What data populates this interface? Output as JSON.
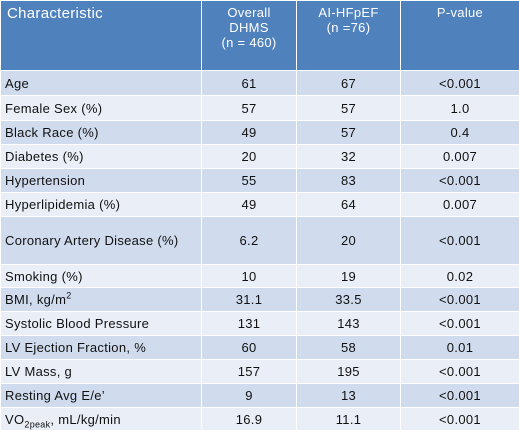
{
  "table": {
    "header": [
      "Characteristic",
      [
        "Overall",
        "DHMS",
        "(n = 460)"
      ],
      [
        "AI-HFpEF",
        "(n =76)"
      ],
      "P-value"
    ],
    "rows": [
      [
        "Age",
        "61",
        "67",
        "<0.001"
      ],
      [
        "Female Sex (%)",
        "57",
        "57",
        "1.0"
      ],
      [
        "Black Race (%)",
        "49",
        "57",
        "0.4"
      ],
      [
        "Diabetes (%)",
        "20",
        "32",
        "0.007"
      ],
      [
        "Hypertension",
        "55",
        "83",
        "<0.001"
      ],
      [
        "Hyperlipidemia (%)",
        "49",
        "64",
        "0.007"
      ],
      [
        "Coronary Artery Disease (%)",
        "6.2",
        "20",
        "<0.001"
      ],
      [
        "Smoking (%)",
        "10",
        "19",
        "0.02"
      ],
      [
        [
          {
            "text": "BMI, kg/m"
          },
          {
            "text": "2",
            "style": "sup"
          }
        ],
        "31.1",
        "33.5",
        "<0.001"
      ],
      [
        "Systolic Blood Pressure",
        "131",
        "143",
        "<0.001"
      ],
      [
        "LV Ejection Fraction, %",
        "60",
        "58",
        "0.01"
      ],
      [
        "LV Mass, g",
        "157",
        "195",
        "<0.001"
      ],
      [
        "Resting Avg E/e’",
        "9",
        "13",
        "<0.001"
      ],
      [
        [
          {
            "text": "VO"
          },
          {
            "text": "2peak",
            "style": "sub"
          },
          {
            "text": ", mL/kg/min"
          }
        ],
        "16.9",
        "11.1",
        "<0.001"
      ]
    ]
  }
}
